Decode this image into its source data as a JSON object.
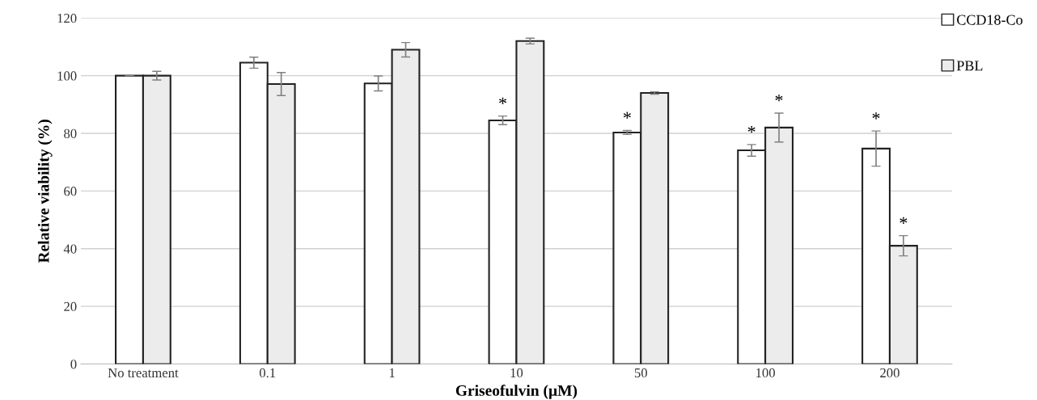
{
  "chart_data": {
    "type": "bar",
    "xlabel": "Griseofulvin (µM)",
    "ylabel": "Relative viability (%)",
    "categories": [
      "No treatment",
      "0.1",
      "1",
      "10",
      "50",
      "100",
      "200"
    ],
    "series": [
      {
        "name": "CCD18-Co",
        "color": "#ffffff",
        "values": [
          100,
          104.5,
          97.3,
          84.5,
          80.3,
          74.1,
          74.7
        ],
        "errors": [
          0,
          1.9,
          2.6,
          1.5,
          0.7,
          2,
          6.1
        ]
      },
      {
        "name": "PBL",
        "color": "#ececec",
        "values": [
          100,
          97.1,
          109,
          112,
          94,
          82,
          41
        ],
        "errors": [
          1.5,
          4,
          2.5,
          1,
          0.4,
          5,
          3.5
        ]
      }
    ],
    "ylim": [
      0,
      120
    ],
    "yticks": [
      0,
      20,
      40,
      60,
      80,
      100,
      120
    ],
    "grid": "y",
    "legend": "right",
    "annotations": [
      {
        "text": "*",
        "x": "10",
        "y": 84.5
      },
      {
        "text": "*",
        "x": "50",
        "y": 80.3
      },
      {
        "text": "*",
        "x": "100",
        "y": 74.1
      },
      {
        "text": "*",
        "x": "100",
        "y": 82
      },
      {
        "text": "*",
        "x": "200",
        "y": 74.7
      },
      {
        "text": "*",
        "x": "200",
        "y": 41
      }
    ]
  }
}
